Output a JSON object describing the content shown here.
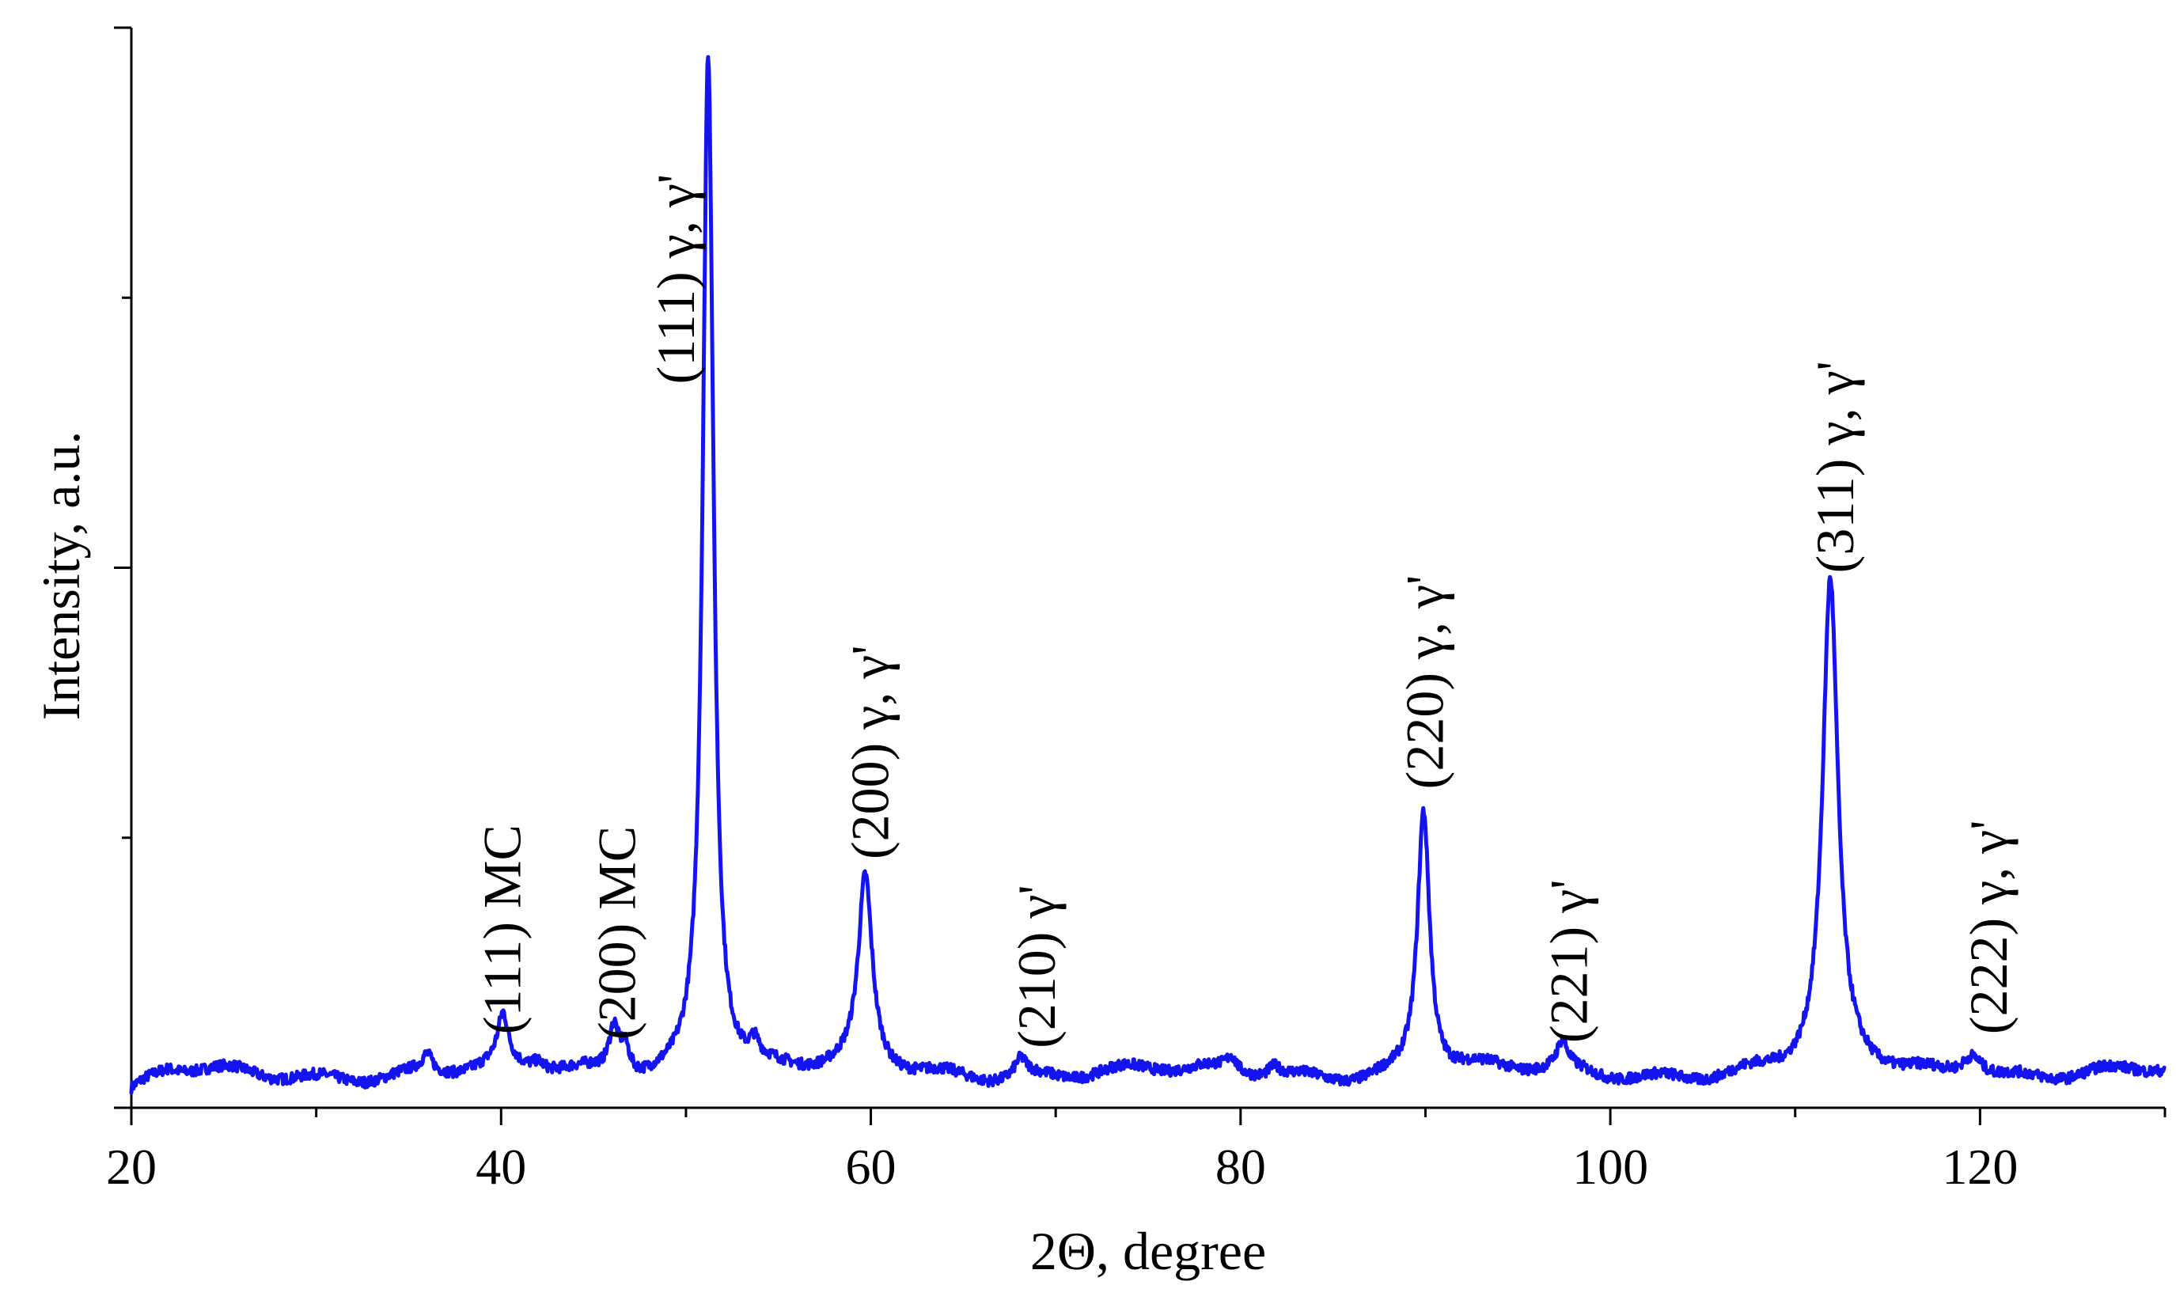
{
  "chart_data": {
    "type": "line",
    "xlabel": "2Θ, degree",
    "ylabel": "Intensity, a.u.",
    "xlim": [
      20,
      130
    ],
    "ylim": [
      0,
      100
    ],
    "x_ticks": [
      "20",
      "40",
      "60",
      "80",
      "100",
      "120"
    ],
    "line_color": "#1414f0",
    "series": [
      {
        "baseline": 3.2,
        "peaks": [
          {
            "x": 36.0,
            "height": 1.6,
            "width": 0.35
          },
          {
            "x": 40.1,
            "height": 4.6,
            "width": 0.35
          },
          {
            "x": 42.0,
            "height": 0.8,
            "width": 0.4
          },
          {
            "x": 46.1,
            "height": 4.2,
            "width": 0.3
          },
          {
            "x": 46.7,
            "height": 2.6,
            "width": 0.3
          },
          {
            "x": 51.2,
            "height": 95.0,
            "width": 0.35
          },
          {
            "x": 53.7,
            "height": 1.6,
            "width": 0.3
          },
          {
            "x": 59.7,
            "height": 17.5,
            "width": 0.45
          },
          {
            "x": 68.1,
            "height": 1.7,
            "width": 0.4
          },
          {
            "x": 79.5,
            "height": 1.2,
            "width": 0.3
          },
          {
            "x": 81.8,
            "height": 1.0,
            "width": 0.4
          },
          {
            "x": 89.9,
            "height": 24.5,
            "width": 0.4
          },
          {
            "x": 97.4,
            "height": 2.4,
            "width": 0.35
          },
          {
            "x": 111.9,
            "height": 45.0,
            "width": 0.5
          },
          {
            "x": 119.6,
            "height": 2.3,
            "width": 0.7
          }
        ]
      }
    ],
    "annotations": [
      {
        "text": "(111) MC",
        "x": 40.1,
        "y": 6.8
      },
      {
        "text": "(200) MC",
        "x": 46.3,
        "y": 6.3
      },
      {
        "text": "(111) γ, γ'",
        "x": 49.5,
        "y": 67
      },
      {
        "text": "(200) γ, γ'",
        "x": 60.0,
        "y": 23
      },
      {
        "text": "(210) γ'",
        "x": 69.0,
        "y": 5.5
      },
      {
        "text": "(220) γ, γ'",
        "x": 90.0,
        "y": 29.5
      },
      {
        "text": "(221) γ'",
        "x": 97.8,
        "y": 6.0
      },
      {
        "text": "(311) γ, γ'",
        "x": 112.2,
        "y": 49.5
      },
      {
        "text": "(222) γ, γ'",
        "x": 120.5,
        "y": 6.8
      }
    ]
  }
}
